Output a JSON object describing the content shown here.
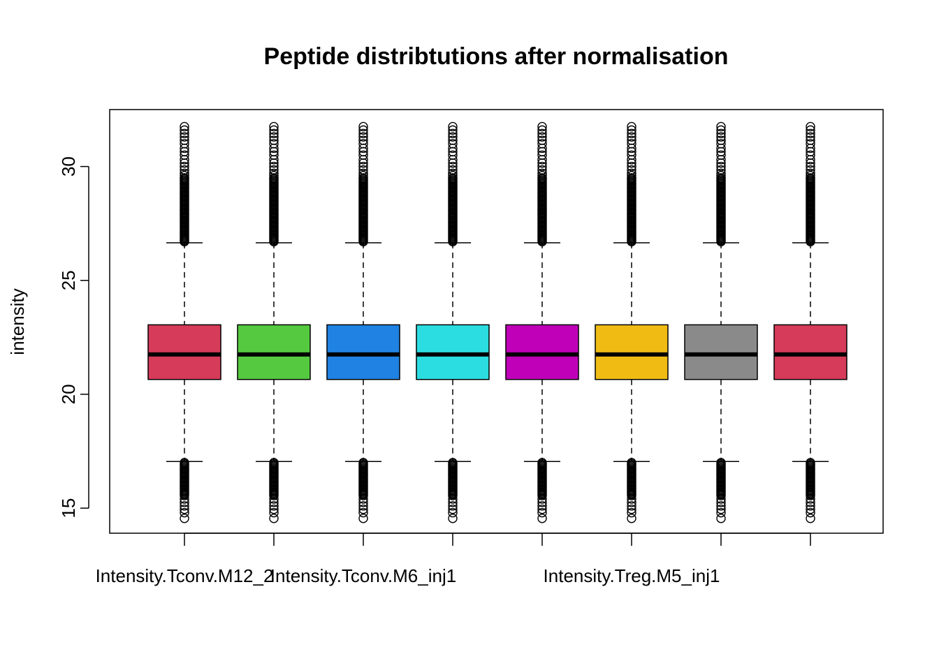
{
  "chart_data": {
    "type": "boxplot",
    "title": "Peptide distribtutions after normalisation",
    "xlabel": "",
    "ylabel": "intensity",
    "ylim": [
      13.9,
      32.5
    ],
    "yticks": [
      15,
      20,
      25,
      30
    ],
    "grid": false,
    "legend": "none",
    "categories": [
      "Intensity.Tconv.M12_2",
      "",
      "Intensity.Tconv.M6_inj1",
      "",
      "",
      "Intensity.Treg.M5_inj1",
      "",
      ""
    ],
    "colors": [
      "#D63B59",
      "#55C940",
      "#2083E3",
      "#2BDDE0",
      "#BF00B8",
      "#F0BC14",
      "#8A8A8A",
      "#D63B59"
    ],
    "boxes": [
      {
        "whisker_low": 17.05,
        "q1": 20.65,
        "median": 21.75,
        "q3": 23.05,
        "whisker_high": 26.65,
        "outlier_min": 14.55,
        "outlier_max": 31.75
      },
      {
        "whisker_low": 17.05,
        "q1": 20.65,
        "median": 21.75,
        "q3": 23.05,
        "whisker_high": 26.65,
        "outlier_min": 14.55,
        "outlier_max": 31.75
      },
      {
        "whisker_low": 17.05,
        "q1": 20.65,
        "median": 21.75,
        "q3": 23.05,
        "whisker_high": 26.65,
        "outlier_min": 14.55,
        "outlier_max": 31.75
      },
      {
        "whisker_low": 17.05,
        "q1": 20.65,
        "median": 21.75,
        "q3": 23.05,
        "whisker_high": 26.65,
        "outlier_min": 14.55,
        "outlier_max": 31.75
      },
      {
        "whisker_low": 17.05,
        "q1": 20.65,
        "median": 21.75,
        "q3": 23.05,
        "whisker_high": 26.65,
        "outlier_min": 14.55,
        "outlier_max": 31.75
      },
      {
        "whisker_low": 17.05,
        "q1": 20.65,
        "median": 21.75,
        "q3": 23.05,
        "whisker_high": 26.65,
        "outlier_min": 14.55,
        "outlier_max": 31.75
      },
      {
        "whisker_low": 17.05,
        "q1": 20.65,
        "median": 21.75,
        "q3": 23.05,
        "whisker_high": 26.65,
        "outlier_min": 14.55,
        "outlier_max": 31.75
      },
      {
        "whisker_low": 17.05,
        "q1": 20.65,
        "median": 21.75,
        "q3": 23.05,
        "whisker_high": 26.65,
        "outlier_min": 14.55,
        "outlier_max": 31.75
      }
    ],
    "upper_outliers": [
      31.75,
      31.6,
      31.45,
      31.3,
      31.15,
      31.0,
      30.8,
      30.65,
      30.5,
      30.3,
      30.15,
      30.0,
      29.85,
      29.7,
      29.6,
      29.5
    ],
    "lower_outliers": [
      14.55,
      14.8,
      14.95,
      15.1,
      15.25,
      15.4,
      15.55
    ],
    "dense_upper_range": [
      26.7,
      29.5
    ],
    "dense_lower_range": [
      15.6,
      17.0
    ]
  }
}
